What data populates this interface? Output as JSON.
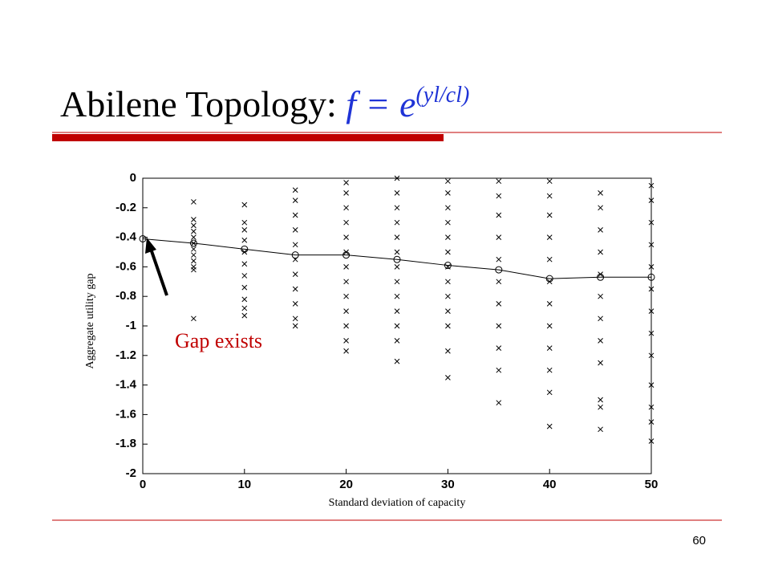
{
  "slide": {
    "title": "Abilene Topology: ",
    "formula": "f = e",
    "superscript": "(yl/cl)",
    "page_number": "60"
  },
  "chart_data": {
    "type": "scatter",
    "x_label": "Standard deviation of capacity",
    "y_label": "Aggregate utility gap",
    "annotation": "Gap exists",
    "xlim": [
      0,
      50
    ],
    "ylim": [
      -2,
      0
    ],
    "xticks": [
      0,
      10,
      20,
      30,
      40,
      50
    ],
    "yticks": [
      0,
      -0.2,
      -0.4,
      -0.6,
      -0.8,
      -1,
      -1.2,
      -1.4,
      -1.6,
      -1.8,
      -2
    ],
    "color": "#000000",
    "line": {
      "x": [
        0,
        5,
        10,
        15,
        20,
        25,
        30,
        35,
        40,
        45,
        50
      ],
      "values": [
        -0.41,
        -0.44,
        -0.48,
        -0.52,
        -0.52,
        -0.55,
        -0.59,
        -0.62,
        -0.68,
        -0.67,
        -0.67
      ]
    },
    "columns": [
      {
        "x": 5,
        "values": [
          -0.16,
          -0.28,
          -0.32,
          -0.36,
          -0.4,
          -0.44,
          -0.48,
          -0.52,
          -0.56,
          -0.6,
          -0.62,
          -0.95
        ]
      },
      {
        "x": 10,
        "values": [
          -0.18,
          -0.3,
          -0.35,
          -0.42,
          -0.5,
          -0.58,
          -0.66,
          -0.74,
          -0.82,
          -0.88,
          -0.93
        ]
      },
      {
        "x": 15,
        "values": [
          -0.08,
          -0.15,
          -0.25,
          -0.35,
          -0.45,
          -0.55,
          -0.65,
          -0.75,
          -0.85,
          -0.95,
          -1.0
        ]
      },
      {
        "x": 20,
        "values": [
          -0.03,
          -0.1,
          -0.2,
          -0.3,
          -0.4,
          -0.5,
          -0.6,
          -0.7,
          -0.8,
          -0.9,
          -1.0,
          -1.1,
          -1.17
        ]
      },
      {
        "x": 25,
        "values": [
          0,
          -0.1,
          -0.2,
          -0.3,
          -0.4,
          -0.5,
          -0.6,
          -0.7,
          -0.8,
          -0.9,
          -1.0,
          -1.1,
          -1.24
        ]
      },
      {
        "x": 30,
        "values": [
          -0.02,
          -0.1,
          -0.2,
          -0.3,
          -0.4,
          -0.5,
          -0.6,
          -0.7,
          -0.8,
          -0.9,
          -1.0,
          -1.17,
          -1.35
        ]
      },
      {
        "x": 35,
        "values": [
          -0.02,
          -0.12,
          -0.25,
          -0.4,
          -0.55,
          -0.7,
          -0.85,
          -1.0,
          -1.15,
          -1.3,
          -1.52
        ]
      },
      {
        "x": 40,
        "values": [
          -0.02,
          -0.12,
          -0.25,
          -0.4,
          -0.55,
          -0.7,
          -0.85,
          -1.0,
          -1.15,
          -1.3,
          -1.45,
          -1.68
        ]
      },
      {
        "x": 45,
        "values": [
          -0.1,
          -0.2,
          -0.35,
          -0.5,
          -0.65,
          -0.8,
          -0.95,
          -1.1,
          -1.25,
          -1.5,
          -1.55,
          -1.7
        ]
      },
      {
        "x": 50,
        "values": [
          -0.05,
          -0.15,
          -0.3,
          -0.45,
          -0.6,
          -0.75,
          -0.9,
          -1.05,
          -1.2,
          -1.4,
          -1.55,
          -1.65,
          -1.78
        ]
      }
    ]
  }
}
